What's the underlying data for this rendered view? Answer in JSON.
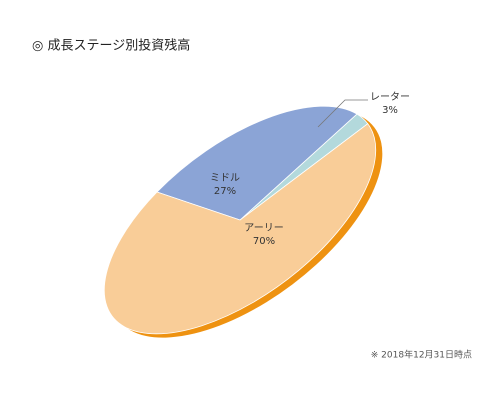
{
  "chart_data": {
    "type": "pie",
    "title": "◎ 成長ステージ別投資残高",
    "categories": [
      "アーリー",
      "ミドル",
      "レーター"
    ],
    "values": [
      70,
      27,
      3
    ],
    "value_labels": [
      "70%",
      "27%",
      "3%"
    ],
    "colors": [
      "#f9cd98",
      "#8ba4d6",
      "#b3d9dc"
    ],
    "shadow_color": "#ee9211",
    "footnote": "※ 2018年12月31日時点"
  }
}
